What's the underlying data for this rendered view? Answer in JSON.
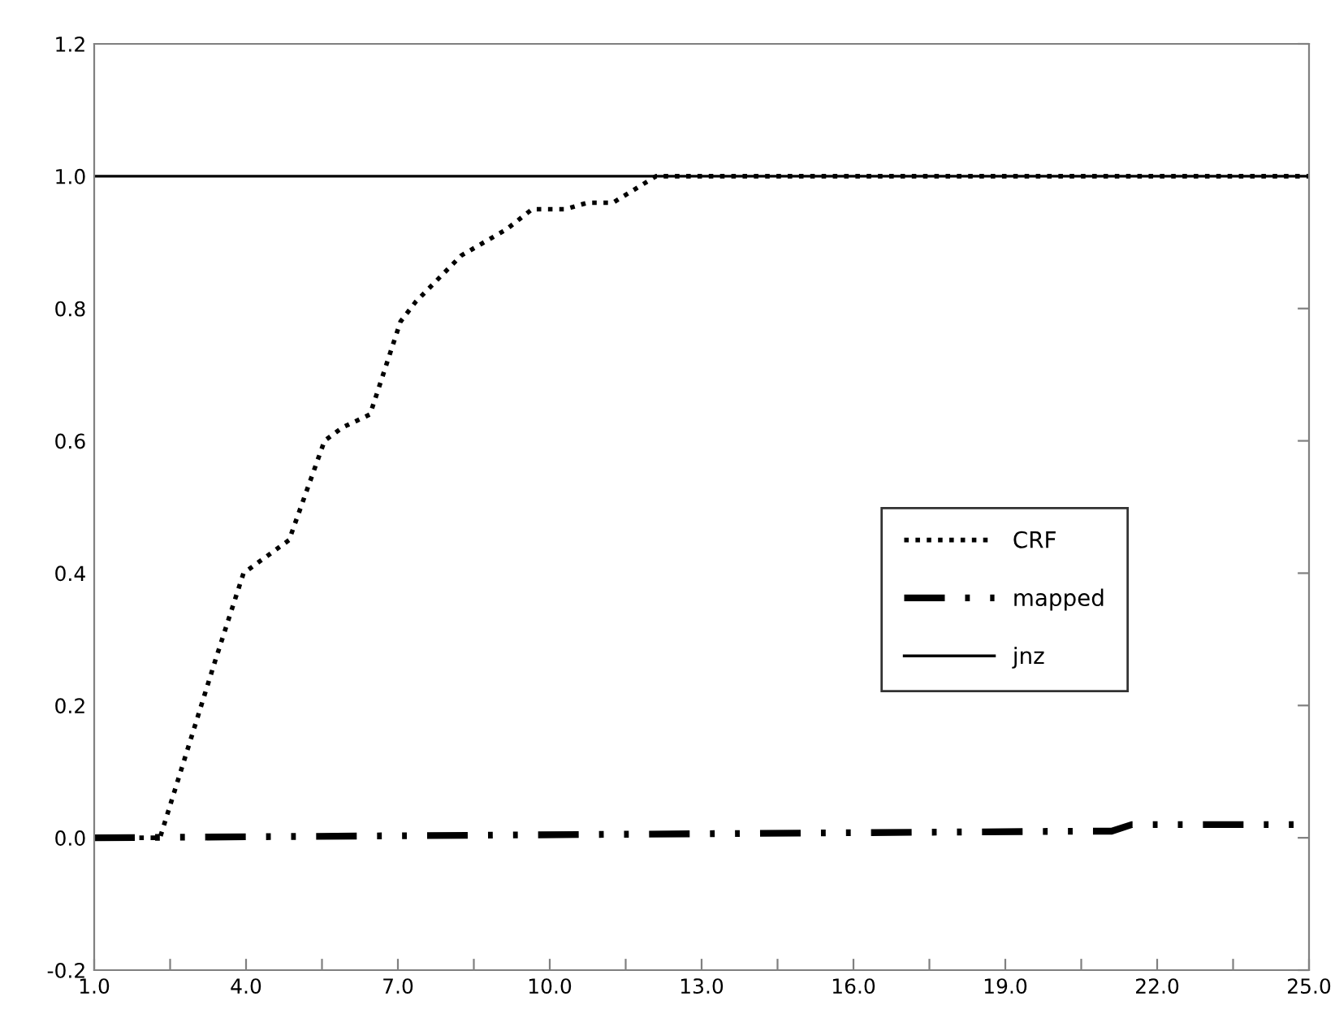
{
  "chart_data": {
    "type": "line",
    "xlim": [
      1,
      25
    ],
    "ylim": [
      -0.2,
      1.2
    ],
    "xticks": [
      {
        "value": 1,
        "label": "1.0"
      },
      {
        "value": 2.5,
        "label": null
      },
      {
        "value": 4,
        "label": "4.0"
      },
      {
        "value": 5.5,
        "label": null
      },
      {
        "value": 7,
        "label": "7.0"
      },
      {
        "value": 8.5,
        "label": null
      },
      {
        "value": 10,
        "label": "10.0"
      },
      {
        "value": 11.5,
        "label": null
      },
      {
        "value": 13,
        "label": "13.0"
      },
      {
        "value": 14.5,
        "label": null
      },
      {
        "value": 16,
        "label": "16.0"
      },
      {
        "value": 17.5,
        "label": null
      },
      {
        "value": 19,
        "label": "19.0"
      },
      {
        "value": 20.5,
        "label": null
      },
      {
        "value": 22,
        "label": "22.0"
      },
      {
        "value": 23.5,
        "label": null
      },
      {
        "value": 25,
        "label": "25.0"
      }
    ],
    "yticks": [
      {
        "value": -0.2,
        "label": "-0.2"
      },
      {
        "value": 0,
        "label": "0.0"
      },
      {
        "value": 0.2,
        "label": "0.2"
      },
      {
        "value": 0.4,
        "label": "0.4"
      },
      {
        "value": 0.6,
        "label": "0.6"
      },
      {
        "value": 0.8,
        "label": "0.8"
      },
      {
        "value": 1.0,
        "label": "1.0"
      },
      {
        "value": 1.2,
        "label": "1.2"
      }
    ],
    "grid": false,
    "legend": "right",
    "marker": "none",
    "series": [
      {
        "name": "CRF",
        "color": "#000000",
        "line_style": "dotted",
        "x": [
          1,
          2.1,
          2.3,
          3.4,
          3.95,
          4.85,
          5.55,
          5.9,
          6.45,
          7.05,
          7.35,
          8.25,
          9.15,
          9.65,
          10.3,
          10.75,
          11.25,
          12.1,
          25
        ],
        "values": [
          0,
          0,
          0,
          0.27,
          0.4,
          0.45,
          0.6,
          0.62,
          0.64,
          0.78,
          0.81,
          0.88,
          0.92,
          0.95,
          0.95,
          0.96,
          0.96,
          1.0,
          1.0
        ]
      },
      {
        "name": "mapped",
        "color": "#000000",
        "line_style": "dashed",
        "x": [
          1,
          20.5,
          21.1,
          21.5,
          25
        ],
        "values": [
          0,
          0.01,
          0.01,
          0.02,
          0.02
        ]
      },
      {
        "name": "jnz",
        "color": "#000000",
        "line_style": "solid",
        "x": [
          1,
          25
        ],
        "values": [
          1.0,
          1.0
        ]
      }
    ]
  }
}
